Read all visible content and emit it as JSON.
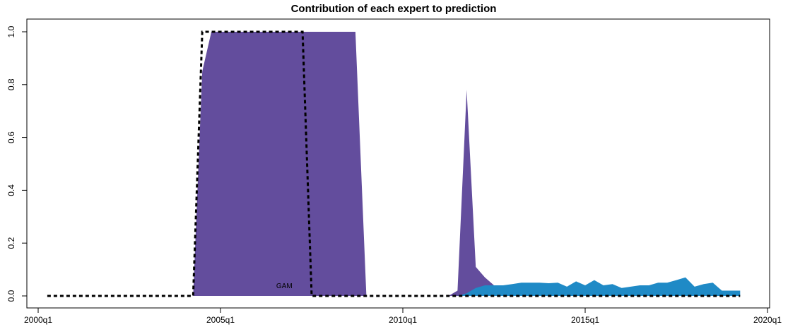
{
  "chart_data": {
    "type": "area",
    "title": "Contribution of each expert to prediction",
    "xlabel": "",
    "ylabel": "",
    "xlim": [
      2000.0,
      2020.0
    ],
    "ylim": [
      0.0,
      1.0
    ],
    "grid": false,
    "legend": "none",
    "x_ticks": [
      {
        "value": 2000.0,
        "label": "2000q1"
      },
      {
        "value": 2005.0,
        "label": "2005q1"
      },
      {
        "value": 2010.0,
        "label": "2010q1"
      },
      {
        "value": 2015.0,
        "label": "2015q1"
      },
      {
        "value": 2020.0,
        "label": "2020q1"
      }
    ],
    "y_ticks": [
      {
        "value": 0.0,
        "label": "0.0"
      },
      {
        "value": 0.2,
        "label": "0.2"
      },
      {
        "value": 0.4,
        "label": "0.4"
      },
      {
        "value": 0.6,
        "label": "0.6"
      },
      {
        "value": 0.8,
        "label": "0.8"
      },
      {
        "value": 1.0,
        "label": "1.0"
      }
    ],
    "annotations": [
      {
        "text": "GAM",
        "x": 2006.75,
        "y": 0.03
      }
    ],
    "series": [
      {
        "color": "#634d9d",
        "x": [
          2004.25,
          2004.5,
          2004.75,
          2005.0,
          2005.5,
          2006.0,
          2006.5,
          2007.0,
          2007.5,
          2008.0,
          2008.5,
          2008.7,
          2009.0,
          2011.25,
          2011.5,
          2011.75,
          2012.0,
          2012.25,
          2012.5,
          2012.75
        ],
        "values": [
          0.0,
          0.85,
          1.0,
          1.0,
          1.0,
          1.0,
          1.0,
          1.0,
          1.0,
          1.0,
          1.0,
          1.0,
          0.0,
          0.0,
          0.02,
          0.78,
          0.11,
          0.07,
          0.04,
          0.04
        ]
      },
      {
        "color": "#1f8ac6",
        "x": [
          2011.5,
          2011.75,
          2012.0,
          2012.25,
          2012.5,
          2012.75,
          2013.0,
          2013.25,
          2013.5,
          2013.75,
          2014.0,
          2014.25,
          2014.5,
          2014.75,
          2015.0,
          2015.25,
          2015.5,
          2015.75,
          2016.0,
          2016.25,
          2016.5,
          2016.75,
          2017.0,
          2017.25,
          2017.5,
          2017.75,
          2018.0,
          2018.25,
          2018.5,
          2018.75,
          2019.0,
          2019.25
        ],
        "values": [
          0.0,
          0.01,
          0.03,
          0.04,
          0.04,
          0.04,
          0.045,
          0.05,
          0.05,
          0.05,
          0.048,
          0.05,
          0.035,
          0.055,
          0.04,
          0.06,
          0.04,
          0.045,
          0.03,
          0.035,
          0.04,
          0.04,
          0.05,
          0.05,
          0.06,
          0.07,
          0.035,
          0.045,
          0.05,
          0.02,
          0.02,
          0.02
        ]
      },
      {
        "name": "GAM",
        "style": "dashed",
        "color": "#000000",
        "x": [
          2000.25,
          2004.25,
          2004.5,
          2007.25,
          2007.5,
          2019.25
        ],
        "values": [
          0.0,
          0.0,
          1.0,
          1.0,
          0.0,
          0.0
        ]
      }
    ]
  }
}
